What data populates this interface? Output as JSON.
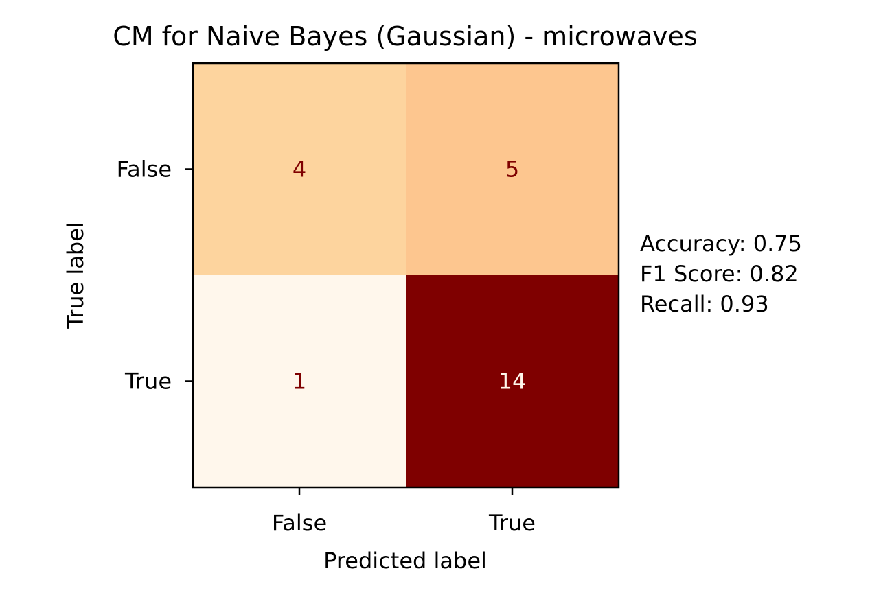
{
  "chart_data": {
    "type": "heatmap",
    "title": "CM for Naive Bayes (Gaussian) - microwaves",
    "xlabel": "Predicted label",
    "ylabel": "True label",
    "x_categories": [
      "False",
      "True"
    ],
    "y_categories": [
      "False",
      "True"
    ],
    "matrix": [
      [
        4,
        5
      ],
      [
        1,
        14
      ]
    ],
    "colormap": "OrRd",
    "colorscale_range": [
      1,
      14
    ],
    "cell_colors": [
      [
        "#fdd49e",
        "#fdc68f"
      ],
      [
        "#fff7ec",
        "#7f0000"
      ]
    ],
    "cell_text_colors": [
      [
        "#7f0000",
        "#7f0000"
      ],
      [
        "#7f0000",
        "#fff7ec"
      ]
    ],
    "colorbar": false,
    "annotations": [
      "Accuracy: 0.75",
      "F1 Score: 0.82",
      "Recall: 0.93"
    ]
  }
}
